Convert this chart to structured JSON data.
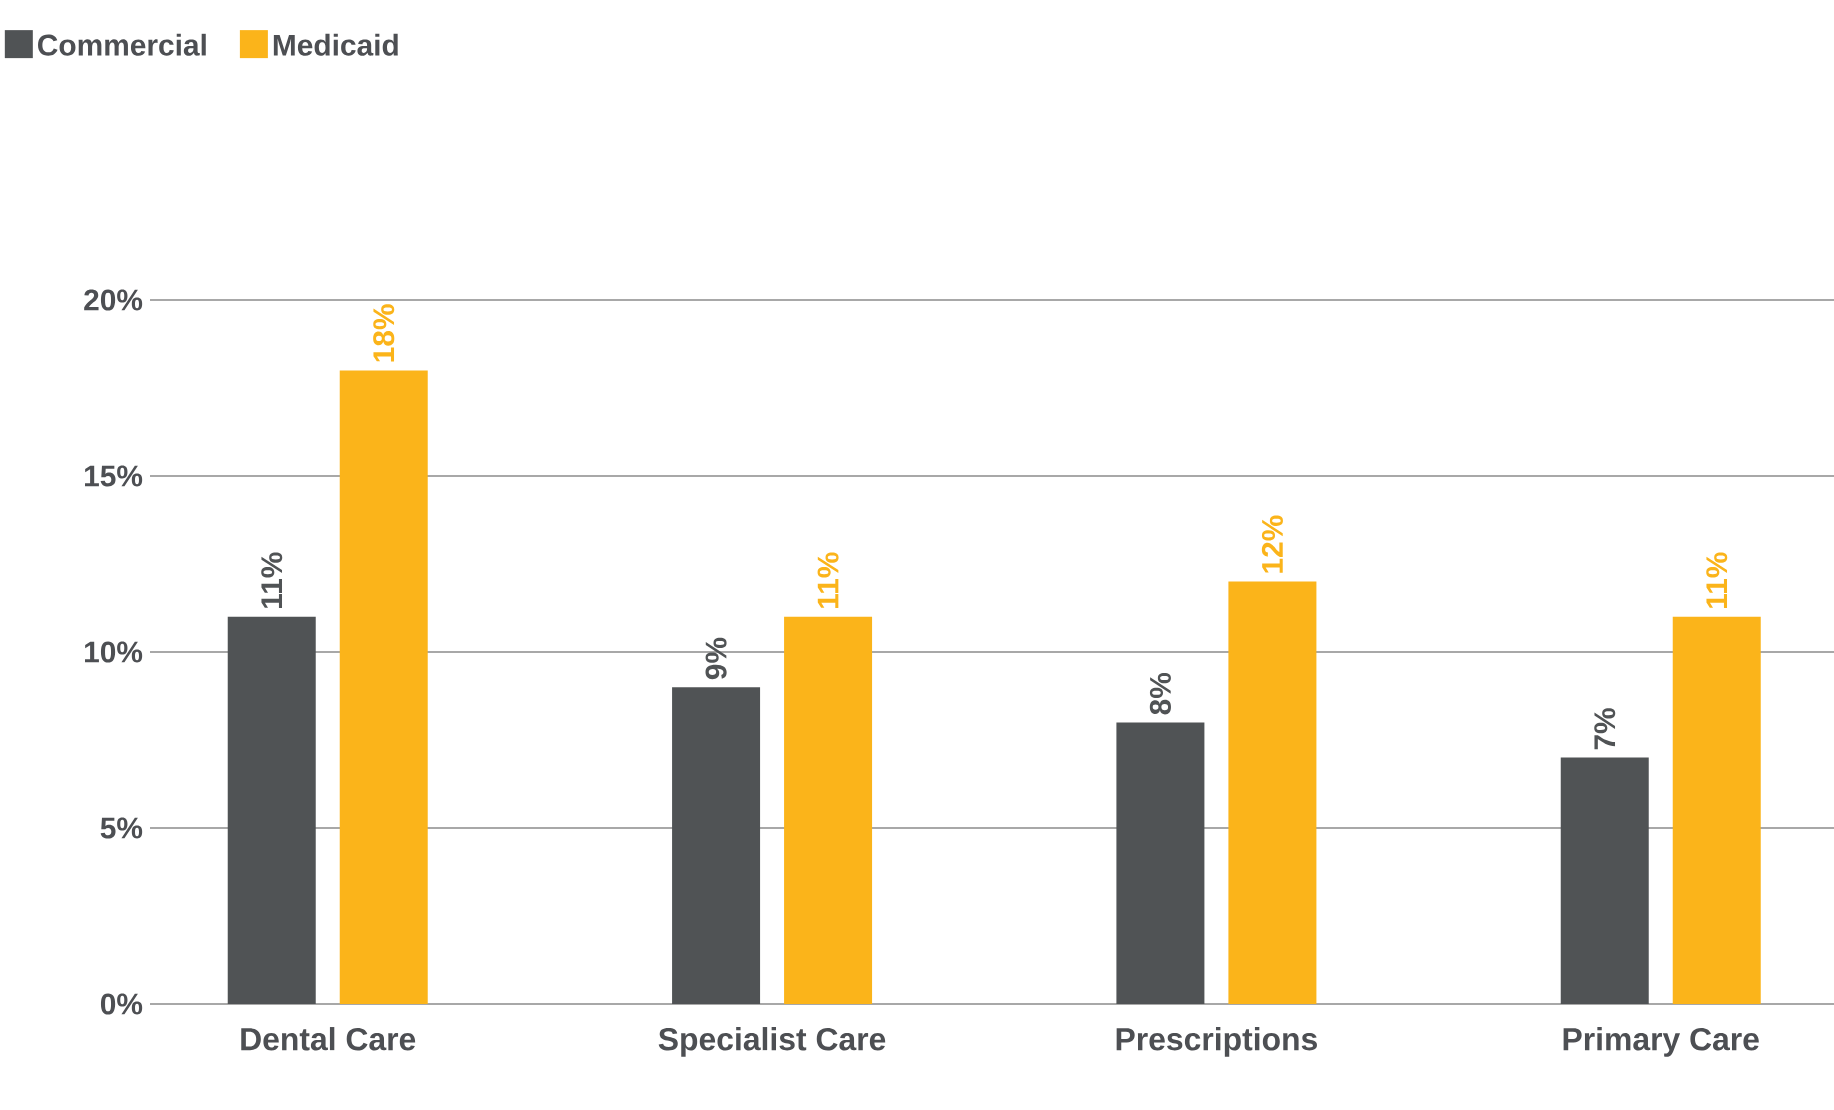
{
  "chart_data": {
    "type": "bar",
    "categories": [
      "Dental Care",
      "Specialist Care",
      "Prescriptions",
      "Primary Care"
    ],
    "series": [
      {
        "name": "Commercial",
        "color": "#505355",
        "values": [
          11,
          9,
          8,
          7
        ],
        "value_labels": [
          "11%",
          "9%",
          "8%",
          "7%"
        ]
      },
      {
        "name": "Medicaid",
        "color": "#fbb41a",
        "values": [
          18,
          11,
          12,
          11
        ],
        "value_labels": [
          "18%",
          "11%",
          "12%",
          "11%"
        ]
      }
    ],
    "ylim": [
      0,
      20
    ],
    "yticks": [
      {
        "value": 0,
        "label": "0%"
      },
      {
        "value": 5,
        "label": "5%"
      },
      {
        "value": 10,
        "label": "10%"
      },
      {
        "value": 15,
        "label": "15%"
      },
      {
        "value": 20,
        "label": "20%"
      }
    ],
    "grid": "y",
    "legend": "top left"
  }
}
